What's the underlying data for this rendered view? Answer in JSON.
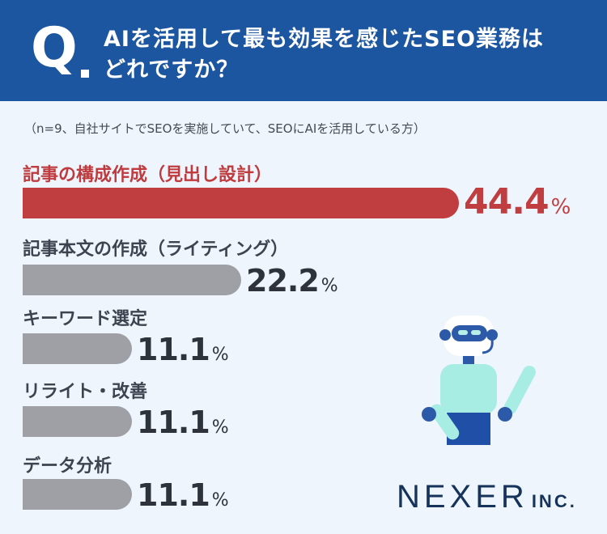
{
  "header": {
    "q_mark": "Q",
    "question_line1": "AIを活用して最も効果を感じたSEO業務は",
    "question_line2": "どれですか？"
  },
  "note": "（n=9、自社サイトでSEOを実施していて、SEOにAIを活用している方）",
  "chart_data": {
    "type": "bar",
    "orientation": "horizontal",
    "categories": [
      "記事の構成作成（見出し設計）",
      "記事本文の作成（ライティング）",
      "キーワード選定",
      "リライト・改善",
      "データ分析"
    ],
    "values": [
      44.4,
      22.2,
      11.1,
      11.1,
      11.1
    ],
    "value_labels": [
      "44.4",
      "22.2",
      "11.1",
      "11.1",
      "11.1"
    ],
    "unit": "%",
    "highlight_index": 0,
    "colors": {
      "highlight": "#c03d40",
      "default": "#9ea0a6"
    }
  },
  "logo": {
    "name": "NEXER",
    "suffix": "INC."
  },
  "colors": {
    "header_bg": "#1c55a0",
    "page_bg": "#eef5fc",
    "logo": "#16335c"
  }
}
